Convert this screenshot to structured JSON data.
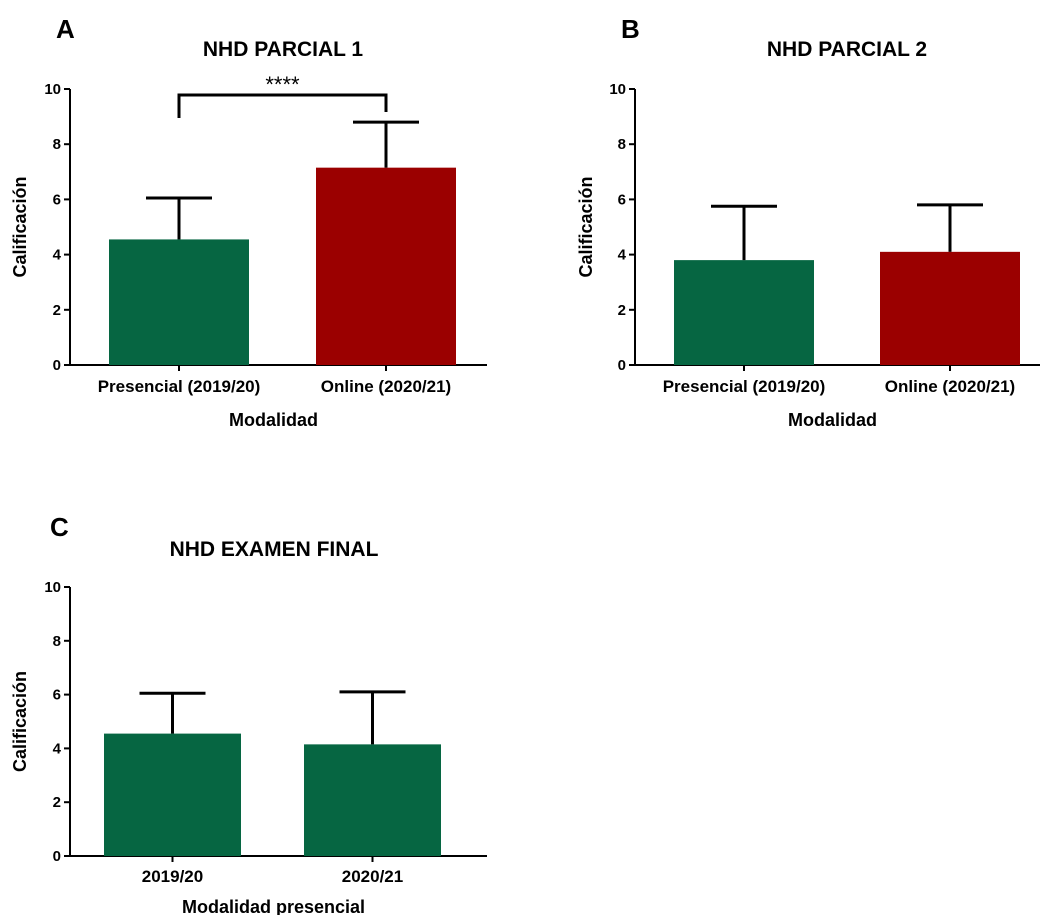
{
  "colors": {
    "green": "#066642",
    "red": "#9b0000",
    "axis": "#000000"
  },
  "chart_data": [
    {
      "type": "bar",
      "panel": "A",
      "title": "NHD PARCIAL 1",
      "xlabel": "Modalidad",
      "ylabel": "Calificación",
      "ylim": [
        0,
        10
      ],
      "yticks": [
        "0",
        "2",
        "4",
        "6",
        "8",
        "10"
      ],
      "categories": [
        "Presencial (2019/20)",
        "Online (2020/21)"
      ],
      "values": [
        4.55,
        7.15
      ],
      "errors": [
        1.5,
        1.65
      ],
      "bar_colors": [
        "green",
        "red"
      ],
      "significance": "****"
    },
    {
      "type": "bar",
      "panel": "B",
      "title": "NHD PARCIAL 2",
      "xlabel": "Modalidad",
      "ylabel": "Calificación",
      "ylim": [
        0,
        10
      ],
      "yticks": [
        "0",
        "2",
        "4",
        "6",
        "8",
        "10"
      ],
      "categories": [
        "Presencial (2019/20)",
        "Online (2020/21)"
      ],
      "values": [
        3.8,
        4.1
      ],
      "errors": [
        1.95,
        1.7
      ],
      "bar_colors": [
        "green",
        "red"
      ]
    },
    {
      "type": "bar",
      "panel": "C",
      "title": "NHD EXAMEN FINAL",
      "xlabel": "Modalidad presencial",
      "ylabel": "Calificación",
      "ylim": [
        0,
        10
      ],
      "yticks": [
        "0",
        "2",
        "4",
        "6",
        "8",
        "10"
      ],
      "categories": [
        "2019/20",
        "2020/21"
      ],
      "values": [
        4.55,
        4.15
      ],
      "errors": [
        1.5,
        1.95
      ],
      "bar_colors": [
        "green",
        "green"
      ]
    }
  ]
}
